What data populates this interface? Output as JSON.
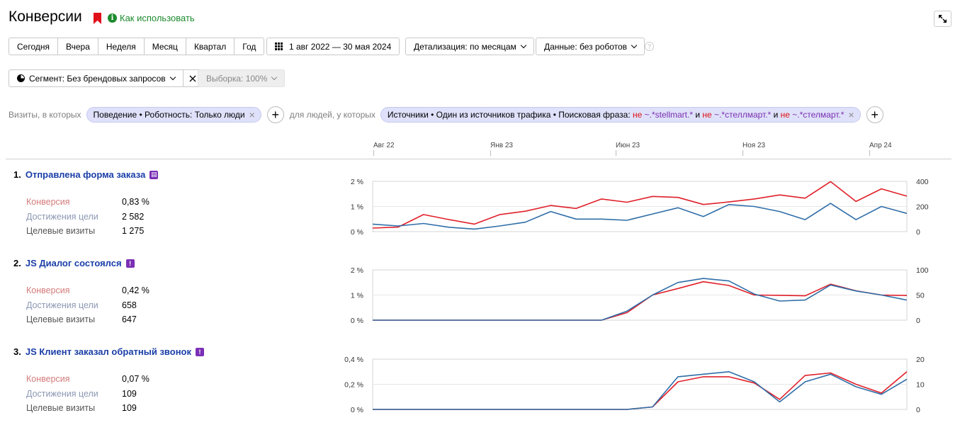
{
  "header": {
    "title": "Конверсии",
    "help_link": "Как использовать",
    "bookmark_color": "#e0101a",
    "help_color": "#1c8a2e"
  },
  "period_buttons": [
    "Сегодня",
    "Вчера",
    "Неделя",
    "Месяц",
    "Квартал",
    "Год"
  ],
  "date_range": "1 авг 2022 — 30 мая 2024",
  "detail_dropdown": "Детализация: по месяцам",
  "data_dropdown": "Данные: без роботов",
  "segment": {
    "label": "Сегмент: Без брендовых запросов",
    "sample": "Выборка: 100%"
  },
  "filters": {
    "visits_prefix": "Визиты, в которых",
    "visits_chip": "Поведение • Роботность: Только люди",
    "people_prefix": "для людей, у которых",
    "people_chip_base": "Источники • Один из источников трафика • Поисковая фраза:",
    "neg_word": "не",
    "and_word": "и",
    "pattern1": "~.*stellmart.*",
    "pattern2": "~.*стеллмарт.*",
    "pattern3": "~.*стелмарт.*"
  },
  "timeline": [
    "Авг 22",
    "Янв 23",
    "Июн 23",
    "Ноя 23",
    "Апр 24"
  ],
  "labels": {
    "conversion": "Конверсия",
    "achievements": "Достижения цели",
    "target_visits": "Целевые визиты"
  },
  "colors": {
    "conversion_line": "#e0202a",
    "visits_line": "#2f6ea8"
  },
  "goals": [
    {
      "num": "1.",
      "name": "Отправлена форма заказа",
      "icon": "form-icon",
      "conversion": "0,83 %",
      "achievements": "2 582",
      "target_visits": "1 275"
    },
    {
      "num": "2.",
      "name": "JS Диалог состоялся",
      "icon": "js-event-icon",
      "conversion": "0,42 %",
      "achievements": "658",
      "target_visits": "647"
    },
    {
      "num": "3.",
      "name": "JS Клиент заказал обратный звонок",
      "icon": "js-event-icon",
      "conversion": "0,07 %",
      "achievements": "109",
      "target_visits": "109"
    }
  ],
  "chart_data": [
    {
      "type": "line",
      "x": [
        "2022-08",
        "2022-09",
        "2022-10",
        "2022-11",
        "2022-12",
        "2023-01",
        "2023-02",
        "2023-03",
        "2023-04",
        "2023-05",
        "2023-06",
        "2023-07",
        "2023-08",
        "2023-09",
        "2023-10",
        "2023-11",
        "2023-12",
        "2024-01",
        "2024-02",
        "2024-03",
        "2024-04",
        "2024-05"
      ],
      "left_ticks": [
        "0 %",
        "1 %",
        "2 %"
      ],
      "right_ticks": [
        "0",
        "200",
        "400"
      ],
      "ylim_left": [
        0,
        2
      ],
      "ylim_right": [
        0,
        400
      ],
      "series": [
        {
          "axis": "left",
          "values": [
            0.14,
            0.18,
            0.68,
            0.48,
            0.3,
            0.68,
            0.81,
            1.04,
            0.92,
            1.3,
            1.17,
            1.4,
            1.36,
            1.08,
            1.18,
            1.3,
            1.46,
            1.33,
            1.99,
            1.2,
            1.7,
            1.41
          ]
        },
        {
          "axis": "right",
          "values": [
            60,
            45,
            65,
            35,
            20,
            45,
            75,
            160,
            100,
            100,
            90,
            140,
            190,
            120,
            215,
            200,
            160,
            95,
            225,
            95,
            200,
            145
          ]
        }
      ]
    },
    {
      "type": "line",
      "x": [
        "2022-08",
        "2022-09",
        "2022-10",
        "2022-11",
        "2022-12",
        "2023-01",
        "2023-02",
        "2023-03",
        "2023-04",
        "2023-05",
        "2023-06",
        "2023-07",
        "2023-08",
        "2023-09",
        "2023-10",
        "2023-11",
        "2023-12",
        "2024-01",
        "2024-02",
        "2024-03",
        "2024-04",
        "2024-05"
      ],
      "left_ticks": [
        "0 %",
        "1 %",
        "2 %"
      ],
      "right_ticks": [
        "0",
        "50",
        "100"
      ],
      "ylim_left": [
        0,
        2
      ],
      "ylim_right": [
        0,
        100
      ],
      "series": [
        {
          "axis": "left",
          "values": [
            0,
            0,
            0,
            0,
            0,
            0,
            0,
            0,
            0,
            0,
            0.3,
            1.0,
            1.26,
            1.53,
            1.38,
            1.0,
            0.99,
            0.97,
            1.43,
            1.17,
            1.0,
            0.98
          ]
        },
        {
          "axis": "right",
          "values": [
            0,
            0,
            0,
            0,
            0,
            0,
            0,
            0,
            0,
            0,
            18,
            50,
            75,
            83,
            78,
            52,
            38,
            40,
            70,
            58,
            50,
            40
          ]
        }
      ]
    },
    {
      "type": "line",
      "x": [
        "2022-08",
        "2022-09",
        "2022-10",
        "2022-11",
        "2022-12",
        "2023-01",
        "2023-02",
        "2023-03",
        "2023-04",
        "2023-05",
        "2023-06",
        "2023-07",
        "2023-08",
        "2023-09",
        "2023-10",
        "2023-11",
        "2023-12",
        "2024-01",
        "2024-02",
        "2024-03",
        "2024-04",
        "2024-05"
      ],
      "left_ticks": [
        "0 %",
        "0,2 %",
        "0,4 %"
      ],
      "right_ticks": [
        "0",
        "10",
        "20"
      ],
      "ylim_left": [
        0,
        0.4
      ],
      "ylim_right": [
        0,
        20
      ],
      "series": [
        {
          "axis": "left",
          "values": [
            0,
            0,
            0,
            0,
            0,
            0,
            0,
            0,
            0,
            0,
            0,
            0.02,
            0.22,
            0.26,
            0.26,
            0.21,
            0.08,
            0.27,
            0.29,
            0.2,
            0.13,
            0.3
          ]
        },
        {
          "axis": "right",
          "values": [
            0,
            0,
            0,
            0,
            0,
            0,
            0,
            0,
            0,
            0,
            0,
            1,
            13,
            14,
            15,
            11,
            3,
            11,
            14,
            9,
            6,
            12
          ]
        }
      ]
    }
  ]
}
